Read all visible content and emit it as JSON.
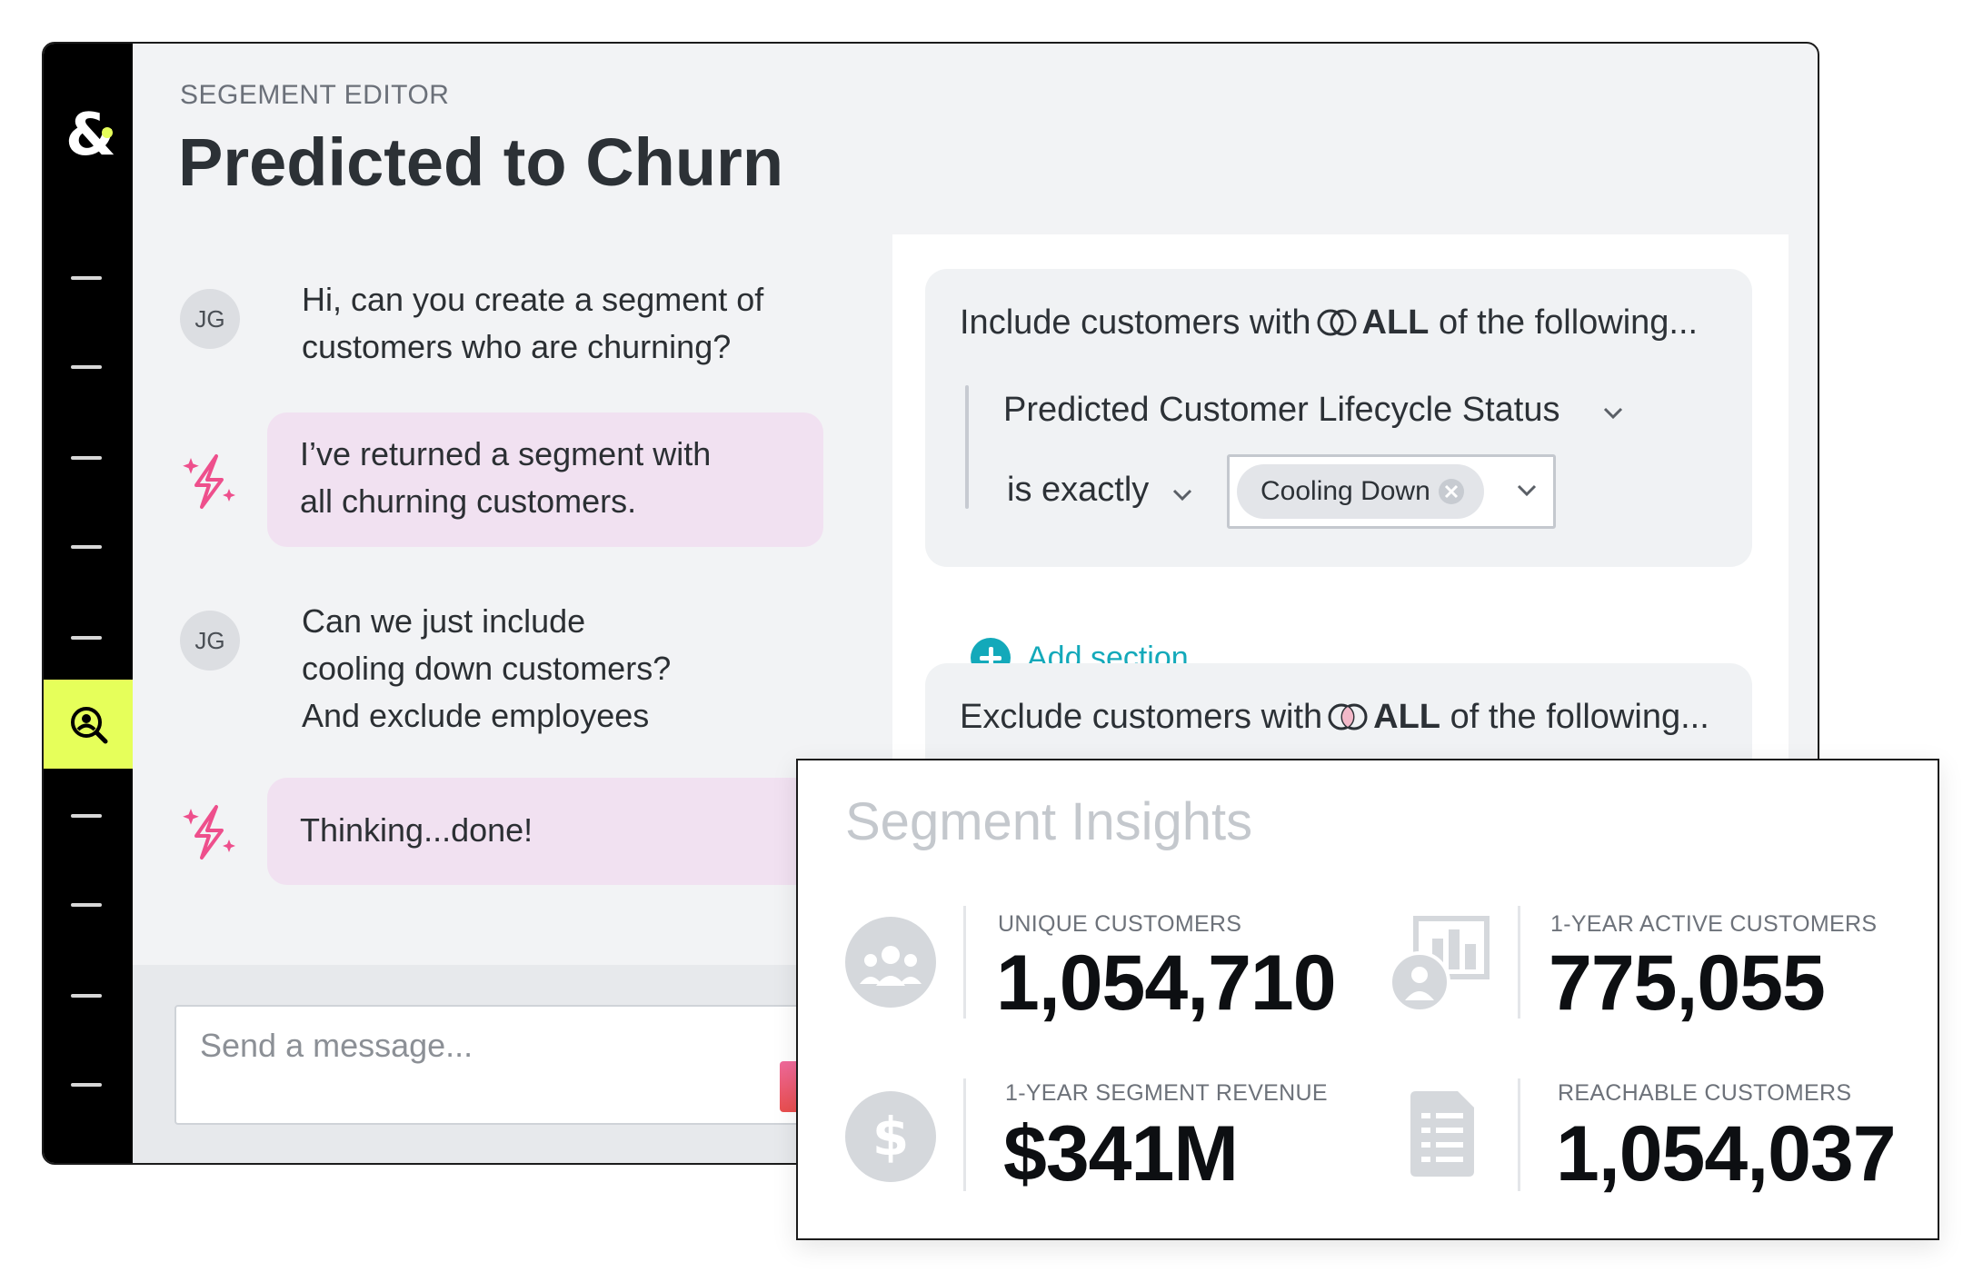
{
  "editor": {
    "eyebrow": "SEGEMENT EDITOR",
    "title": "Predicted to Churn"
  },
  "chat": {
    "messages": [
      {
        "sender": "user",
        "initials": "JG",
        "text": "Hi, can you create a segment of\ncustomers who are churning?"
      },
      {
        "sender": "assistant",
        "icon": "sparkle-icon",
        "text": "I’ve returned a segment with\nall churning customers."
      },
      {
        "sender": "user",
        "initials": "JG",
        "text": "Can we just include\ncooling down customers?\nAnd exclude employees"
      },
      {
        "sender": "assistant",
        "icon": "sparkle-icon",
        "text": "Thinking...done!"
      }
    ],
    "composer_placeholder": "Send a message..."
  },
  "builder": {
    "include": {
      "prefix": "Include customers with",
      "match": "ALL",
      "suffix": "of the following...",
      "attribute": "Predicted Customer Lifecycle Status",
      "operator": "is exactly",
      "value_chip": "Cooling Down"
    },
    "add_section_label": "Add section",
    "exclude": {
      "prefix": "Exclude customers with",
      "match": "ALL",
      "suffix": "of the following..."
    }
  },
  "insights": {
    "title": "Segment Insights",
    "metrics": [
      {
        "label": "UNIQUE CUSTOMERS",
        "value": "1,054,710",
        "icon": "customers-group-icon"
      },
      {
        "label": "1-YEAR ACTIVE CUSTOMERS",
        "value": "775,055",
        "icon": "active-customers-chart-icon"
      },
      {
        "label": "1-YEAR SEGMENT REVENUE",
        "value": "$341M",
        "icon": "dollar-icon"
      },
      {
        "label": "REACHABLE CUSTOMERS",
        "value": "1,054,037",
        "icon": "document-list-icon"
      }
    ]
  },
  "colors": {
    "accent_yellow": "#e6ff5a",
    "assistant_bubble": "#f1e1f1",
    "teal": "#13a9ba",
    "sparkle_pink": "#ee4f8c"
  }
}
